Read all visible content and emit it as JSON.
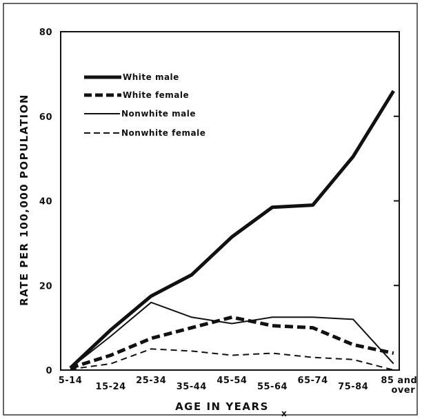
{
  "chart_data": {
    "type": "line",
    "title": "",
    "xlabel": "AGE IN YEARS",
    "ylabel": "RATE PER 100,000 POPULATION",
    "categories": [
      "5-14",
      "15-24",
      "25-34",
      "35-44",
      "45-54",
      "55-64",
      "65-74",
      "75-84",
      "85 and over"
    ],
    "category_lines": [
      [
        "5-14"
      ],
      [
        "15-24"
      ],
      [
        "25-34"
      ],
      [
        "35-44"
      ],
      [
        "45-54"
      ],
      [
        "55-64"
      ],
      [
        "65-74"
      ],
      [
        "75-84"
      ],
      [
        "85",
        "and",
        "over"
      ]
    ],
    "ylim": [
      0,
      80
    ],
    "yticks": [
      "0",
      "20",
      "40",
      "60",
      "80"
    ],
    "grid": false,
    "legend_position": "top-left",
    "series": [
      {
        "name": "White male",
        "style": "thick-solid",
        "values": [
          0.5,
          9.5,
          17.5,
          22.5,
          31.5,
          38.5,
          39,
          50.5,
          66
        ]
      },
      {
        "name": "White female",
        "style": "thick-dashed",
        "values": [
          0.5,
          3.5,
          7.5,
          10,
          12.5,
          10.5,
          10,
          6,
          4
        ]
      },
      {
        "name": "Nonwhite male",
        "style": "thin-solid",
        "values": [
          0.5,
          8,
          16,
          12.5,
          11,
          12.5,
          12.5,
          12,
          1.5
        ]
      },
      {
        "name": "Nonwhite female",
        "style": "thin-dashed",
        "values": [
          0.2,
          1.5,
          5,
          4.5,
          3.5,
          4,
          3,
          2.5,
          0
        ]
      }
    ]
  },
  "legend": {
    "white_male": "White male",
    "white_female": "White female",
    "nonwhite_male": "Nonwhite male",
    "nonwhite_female": "Nonwhite female"
  },
  "footnote_mark": "x"
}
